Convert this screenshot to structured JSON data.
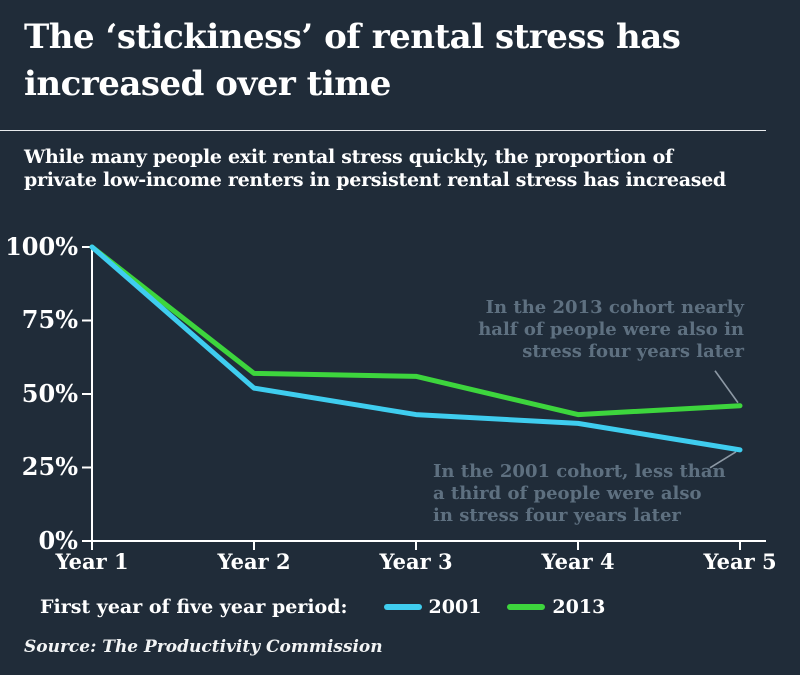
{
  "header": {
    "title_lines": [
      "The ‘stickiness’ of rental stress has",
      "increased over time"
    ],
    "subtitle_lines": [
      "While many people exit rental stress quickly, the proportion of",
      "private low-income renters in persistent rental stress has increased"
    ]
  },
  "chart_data": {
    "type": "line",
    "categories": [
      "Year 1",
      "Year 2",
      "Year 3",
      "Year 4",
      "Year 5"
    ],
    "series": [
      {
        "name": "2013",
        "color": "#3dd53d",
        "values": [
          100,
          57,
          56,
          43,
          46
        ]
      },
      {
        "name": "2001",
        "color": "#3fcdef",
        "values": [
          100,
          52,
          43,
          40,
          31
        ]
      }
    ],
    "y_ticks": [
      "100%",
      "75%",
      "50%",
      "25%",
      "0%"
    ],
    "ylim": [
      0,
      100
    ],
    "grid": false,
    "legend_position": "bottom",
    "legend_label": "First year of five year period:",
    "legend_order": [
      "2001",
      "2013"
    ],
    "annotations": [
      {
        "id": "anno-2013",
        "lines": [
          "In the 2013 cohort nearly",
          "half of people were also in",
          "stress four years later"
        ],
        "series": "2013",
        "point": "Year 5",
        "side": "above"
      },
      {
        "id": "anno-2001",
        "lines": [
          "In the 2001 cohort, less than",
          "a third of people were also",
          "in stress four years later"
        ],
        "series": "2001",
        "point": "Year 5",
        "side": "below"
      }
    ]
  },
  "footer": {
    "source": "Source: The Productivity Commission"
  },
  "colors": {
    "background": "#202c39",
    "text": "#ffffff",
    "axis": "#ffffff",
    "annotation_text": "#5e7080",
    "leader_line": "#8d99a5",
    "divider": "#e8ebed",
    "series_2001": "#3fcdef",
    "series_2013": "#3dd53d"
  }
}
